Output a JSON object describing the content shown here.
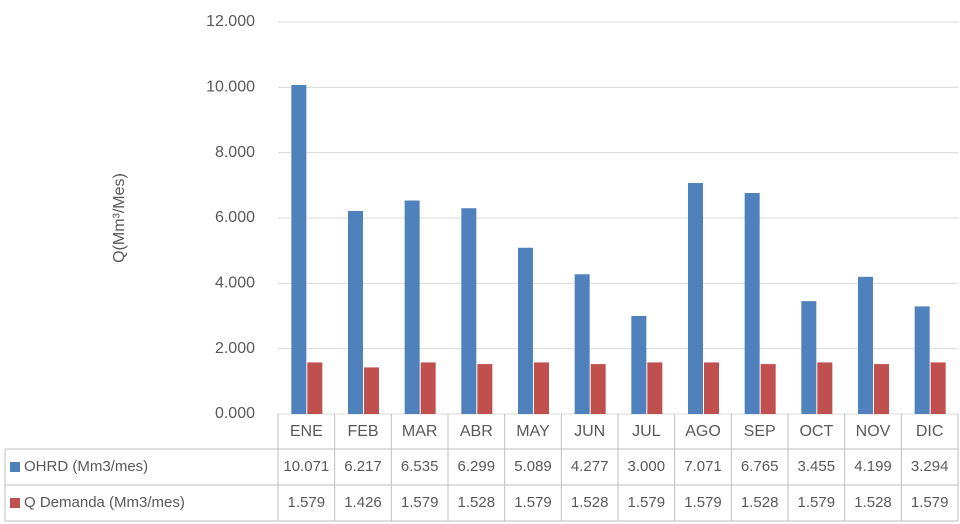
{
  "chart_data": {
    "type": "bar",
    "y_label": "Q(Mm³/Mes)",
    "categories": [
      "ENE",
      "FEB",
      "MAR",
      "ABR",
      "MAY",
      "JUN",
      "JUL",
      "AGO",
      "SEP",
      "OCT",
      "NOV",
      "DIC"
    ],
    "series": [
      {
        "name": "OHRD (Mm3/mes)",
        "color": "#4f81bd",
        "values": [
          10.071,
          6.217,
          6.535,
          6.299,
          5.089,
          4.277,
          3.0,
          7.071,
          6.765,
          3.455,
          4.199,
          3.294
        ],
        "value_labels": [
          "10.071",
          "6.217",
          "6.535",
          "6.299",
          "5.089",
          "4.277",
          "3.000",
          "7.071",
          "6.765",
          "3.455",
          "4.199",
          "3.294"
        ]
      },
      {
        "name": "Q Demanda (Mm3/mes)",
        "color": "#c0504d",
        "values": [
          1.579,
          1.426,
          1.579,
          1.528,
          1.579,
          1.528,
          1.579,
          1.579,
          1.528,
          1.579,
          1.528,
          1.579
        ],
        "value_labels": [
          "1.579",
          "1.426",
          "1.579",
          "1.528",
          "1.579",
          "1.528",
          "1.579",
          "1.579",
          "1.528",
          "1.579",
          "1.528",
          "1.579"
        ]
      }
    ],
    "ylim": [
      0,
      12
    ],
    "yticks": [
      {
        "value": 0,
        "label": "0.000"
      },
      {
        "value": 2,
        "label": "2.000"
      },
      {
        "value": 4,
        "label": "4.000"
      },
      {
        "value": 6,
        "label": "6.000"
      },
      {
        "value": 8,
        "label": "8.000"
      },
      {
        "value": 10,
        "label": "10.000"
      },
      {
        "value": 12,
        "label": "12.000"
      }
    ],
    "grid": true,
    "legend": "table"
  }
}
